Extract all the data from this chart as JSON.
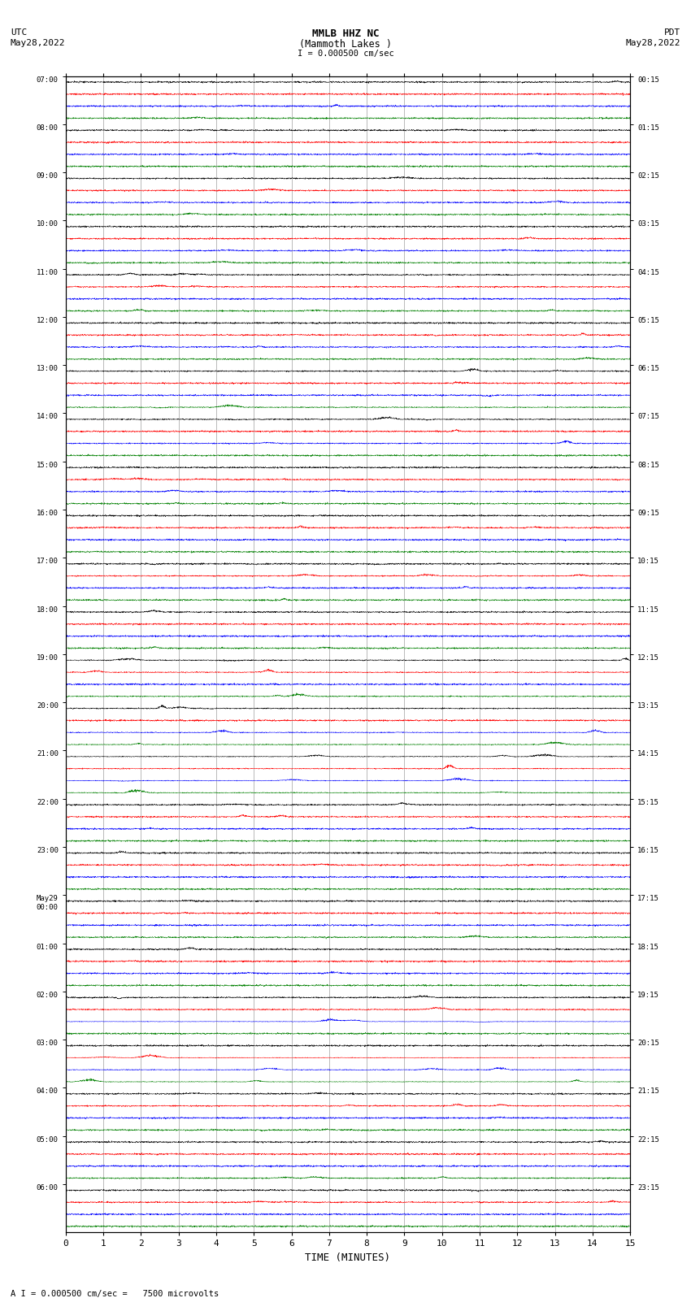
{
  "title_line1": "MMLB HHZ NC",
  "title_line2": "(Mammoth Lakes )",
  "title_scale": "I = 0.000500 cm/sec",
  "label_left_top": "UTC",
  "label_left_date": "May28,2022",
  "label_right_top": "PDT",
  "label_right_date": "May28,2022",
  "xlabel": "TIME (MINUTES)",
  "footer": "A I = 0.000500 cm/sec =   7500 microvolts",
  "xlim": [
    0,
    15
  ],
  "xticks": [
    0,
    1,
    2,
    3,
    4,
    5,
    6,
    7,
    8,
    9,
    10,
    11,
    12,
    13,
    14,
    15
  ],
  "colors": [
    "black",
    "red",
    "blue",
    "green"
  ],
  "left_labels": [
    "07:00",
    "08:00",
    "09:00",
    "10:00",
    "11:00",
    "12:00",
    "13:00",
    "14:00",
    "15:00",
    "16:00",
    "17:00",
    "18:00",
    "19:00",
    "20:00",
    "21:00",
    "22:00",
    "23:00",
    "May29\n00:00",
    "01:00",
    "02:00",
    "03:00",
    "04:00",
    "05:00",
    "06:00"
  ],
  "right_labels": [
    "00:15",
    "01:15",
    "02:15",
    "03:15",
    "04:15",
    "05:15",
    "06:15",
    "07:15",
    "08:15",
    "09:15",
    "10:15",
    "11:15",
    "12:15",
    "13:15",
    "14:15",
    "15:15",
    "16:15",
    "17:15",
    "18:15",
    "19:15",
    "20:15",
    "21:15",
    "22:15",
    "23:15"
  ],
  "n_rows": 24,
  "traces_per_row": 4,
  "noise_scale": 0.06,
  "background_color": "white",
  "figsize": [
    8.5,
    16.13
  ],
  "dpi": 100,
  "vline_color": "#888888",
  "vline_positions": [
    1,
    2,
    3,
    4,
    5,
    6,
    7,
    8,
    9,
    10,
    11,
    12,
    13,
    14
  ],
  "special_rows_medium": [
    6,
    7,
    12,
    13,
    14,
    18,
    19,
    20
  ],
  "special_rows_large": [
    13,
    14,
    19,
    20
  ]
}
